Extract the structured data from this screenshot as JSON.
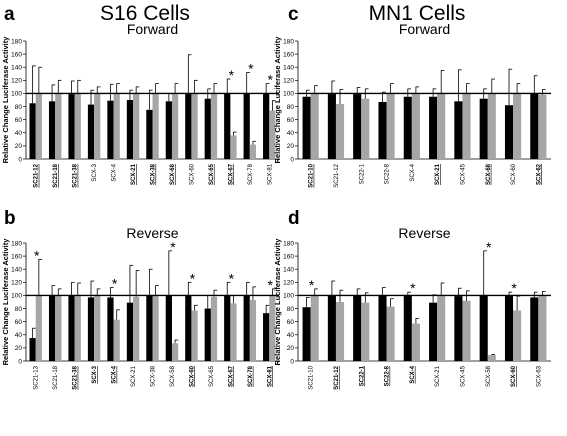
{
  "figure": {
    "left_title": "S16 Cells",
    "right_title": "MN1 Cells"
  },
  "colors": {
    "black_bar": "#000000",
    "gray_bar": "#a6a6a6"
  },
  "chart_data": [
    {
      "panel": "a",
      "title": "Forward",
      "type": "bar",
      "ylabel": "Relative Change Luciferase Activity",
      "ylim": [
        0,
        180
      ],
      "yticks": [
        0,
        20,
        40,
        60,
        80,
        100,
        120,
        140,
        160,
        180
      ],
      "reference_line": 100,
      "categories": [
        "SC21-12",
        "SC21-18",
        "SC21-38",
        "SCX-3",
        "SCX-4",
        "SCX-21",
        "SCX-38",
        "SCX-68",
        "SCX-60",
        "SCX-65",
        "SCX-67",
        "SCX-78",
        "SCX-81"
      ],
      "underlined": [
        true,
        true,
        true,
        false,
        false,
        true,
        true,
        true,
        false,
        true,
        true,
        false,
        false
      ],
      "series": [
        {
          "values": [
            85,
            88,
            99,
            83,
            89,
            90,
            75,
            88,
            99,
            92,
            100,
            100,
            100
          ],
          "errors": [
            57,
            25,
            20,
            22,
            25,
            15,
            30,
            12,
            60,
            15,
            22,
            32,
            15
          ]
        },
        {
          "values": [
            100,
            100,
            100,
            100,
            100,
            100,
            100,
            100,
            100,
            100,
            36,
            22,
            74
          ],
          "errors": [
            40,
            20,
            20,
            10,
            15,
            10,
            15,
            15,
            20,
            15,
            5,
            5,
            15
          ]
        }
      ],
      "stars": [
        "SCX-67",
        "SCX-78",
        "SCX-81"
      ]
    },
    {
      "panel": "c",
      "title": "Forward",
      "type": "bar",
      "ylabel": "Relative Change Luciferase Activity",
      "ylim": [
        0,
        180
      ],
      "yticks": [
        0,
        20,
        40,
        60,
        80,
        100,
        120,
        140,
        160,
        180
      ],
      "reference_line": 100,
      "categories": [
        "SC21-10",
        "SC21-12",
        "SC22-1",
        "SC22-8",
        "SCX-4",
        "SCX-21",
        "SCX-45",
        "SCX-68",
        "SCX-60",
        "SCX-62"
      ],
      "underlined": [
        true,
        false,
        false,
        false,
        false,
        true,
        false,
        true,
        false,
        true
      ],
      "series": [
        {
          "values": [
            95,
            99,
            99,
            87,
            95,
            95,
            88,
            92,
            82,
            100
          ],
          "errors": [
            10,
            20,
            10,
            15,
            12,
            12,
            48,
            15,
            55,
            27
          ]
        },
        {
          "values": [
            100,
            84,
            92,
            100,
            100,
            100,
            100,
            100,
            100,
            98
          ],
          "errors": [
            12,
            22,
            15,
            15,
            10,
            35,
            15,
            22,
            15,
            8
          ]
        }
      ],
      "stars": []
    },
    {
      "panel": "b",
      "title": "Reverse",
      "type": "bar",
      "ylabel": "Relative Change Luciferase Activity",
      "ylim": [
        0,
        180
      ],
      "yticks": [
        0,
        20,
        40,
        60,
        80,
        100,
        120,
        140,
        160,
        180
      ],
      "reference_line": 100,
      "categories": [
        "SC21-13",
        "SC21-18",
        "SC21-38",
        "SCX-3",
        "SCX-4",
        "SCX-21",
        "SCX-38",
        "SCX-58",
        "SCX-60",
        "SCX-65",
        "SCX-67",
        "SCX-78",
        "SCX-81"
      ],
      "underlined": [
        false,
        false,
        true,
        true,
        true,
        false,
        false,
        false,
        true,
        false,
        true,
        true,
        true
      ],
      "series": [
        {
          "values": [
            35,
            100,
            100,
            97,
            97,
            89,
            100,
            100,
            100,
            80,
            100,
            100,
            73
          ],
          "errors": [
            15,
            15,
            20,
            25,
            15,
            57,
            40,
            68,
            20,
            20,
            20,
            20,
            12
          ]
        },
        {
          "values": [
            100,
            100,
            99,
            100,
            63,
            98,
            100,
            27,
            77,
            98,
            88,
            93,
            100
          ],
          "errors": [
            55,
            10,
            20,
            10,
            15,
            40,
            15,
            5,
            8,
            10,
            12,
            20,
            10
          ]
        }
      ],
      "stars": [
        "SC21-13",
        "SCX-4",
        "SCX-58",
        "SCX-60",
        "SCX-67",
        "SCX-81"
      ]
    },
    {
      "panel": "d",
      "title": "Reverse",
      "type": "bar",
      "ylabel": "Relative Change Luciferase Activity",
      "ylim": [
        0,
        180
      ],
      "yticks": [
        0,
        20,
        40,
        60,
        80,
        100,
        120,
        140,
        160,
        180
      ],
      "reference_line": 100,
      "categories": [
        "SC21-10",
        "SC21-12",
        "SC22-1",
        "SC22-8",
        "SCX-4",
        "SCX-21",
        "SCX-45",
        "SCX-58",
        "SCX-60",
        "SCX-63"
      ],
      "underlined": [
        false,
        true,
        true,
        true,
        true,
        false,
        false,
        false,
        true,
        false
      ],
      "series": [
        {
          "values": [
            82,
            100,
            100,
            100,
            100,
            89,
            99,
            100,
            100,
            97
          ],
          "errors": [
            15,
            22,
            10,
            12,
            5,
            12,
            12,
            68,
            5,
            8
          ]
        },
        {
          "values": [
            100,
            90,
            89,
            83,
            57,
            99,
            92,
            9,
            77,
            100
          ],
          "errors": [
            10,
            18,
            15,
            12,
            8,
            20,
            15,
            1,
            22,
            6
          ]
        }
      ],
      "stars": [
        "SC21-10",
        "SCX-4",
        "SCX-58",
        "SCX-60"
      ]
    }
  ],
  "panel_letters": [
    "a",
    "c",
    "b",
    "d"
  ]
}
